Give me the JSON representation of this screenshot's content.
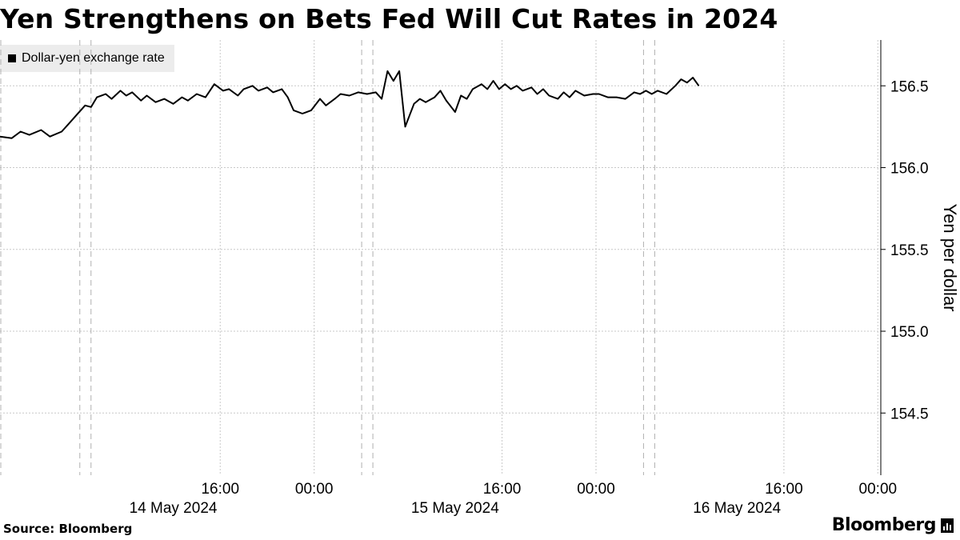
{
  "header": {
    "title": "Yen Strengthens on Bets Fed Will Cut Rates in 2024"
  },
  "footer": {
    "source": "Source: Bloomberg",
    "brand": "Bloomberg"
  },
  "colors": {
    "line": "#000000",
    "grid": "#c8c8c8",
    "legend_bg": "#ececec"
  },
  "chart_data": {
    "type": "line",
    "title": "Yen Strengthens on Bets Fed Will Cut Rates in 2024",
    "ylabel": "Yen per dollar",
    "y_axis_side": "right",
    "ylim": [
      154.12,
      156.78
    ],
    "yticks": [
      154.5,
      155.0,
      155.5,
      156.0,
      156.5
    ],
    "ytick_labels": [
      "154.5",
      "155.0",
      "155.5",
      "156.0",
      "156.5"
    ],
    "xlim": [
      "2024-05-13 21:15",
      "2024-05-17 00:15"
    ],
    "xticks": [
      {
        "time": "2024-05-14 16:00",
        "label": "16:00"
      },
      {
        "time": "2024-05-15 00:00",
        "label": "00:00"
      },
      {
        "time": "2024-05-15 16:00",
        "label": "16:00"
      },
      {
        "time": "2024-05-16 00:00",
        "label": "00:00"
      },
      {
        "time": "2024-05-16 16:00",
        "label": "16:00"
      },
      {
        "time": "2024-05-17 00:00",
        "label": "00:00"
      }
    ],
    "date_labels": [
      {
        "time": "2024-05-14 12:00",
        "label": "14 May 2024"
      },
      {
        "time": "2024-05-15 12:00",
        "label": "15 May 2024"
      },
      {
        "time": "2024-05-16 12:00",
        "label": "16 May 2024"
      }
    ],
    "session_markers": [
      "2024-05-14 05:00",
      "2024-05-15 05:00",
      "2024-05-16 05:00"
    ],
    "grid": true,
    "legend_position": "top-left",
    "series": [
      {
        "name": "Dollar-yen exchange rate",
        "color": "#000000",
        "points": [
          [
            "2024-05-13 21:15",
            156.19
          ],
          [
            "2024-05-13 22:15",
            156.18
          ],
          [
            "2024-05-13 23:00",
            156.22
          ],
          [
            "2024-05-13 23:45",
            156.2
          ],
          [
            "2024-05-14 00:45",
            156.23
          ],
          [
            "2024-05-14 01:30",
            156.19
          ],
          [
            "2024-05-14 02:30",
            156.22
          ],
          [
            "2024-05-14 03:15",
            156.28
          ],
          [
            "2024-05-14 03:45",
            156.32
          ],
          [
            "2024-05-14 04:30",
            156.38
          ],
          [
            "2024-05-14 05:00",
            156.37
          ],
          [
            "2024-05-14 05:30",
            156.43
          ],
          [
            "2024-05-14 06:15",
            156.45
          ],
          [
            "2024-05-14 06:45",
            156.42
          ],
          [
            "2024-05-14 07:30",
            156.47
          ],
          [
            "2024-05-14 08:00",
            156.44
          ],
          [
            "2024-05-14 08:30",
            156.46
          ],
          [
            "2024-05-14 09:15",
            156.41
          ],
          [
            "2024-05-14 09:45",
            156.44
          ],
          [
            "2024-05-14 10:30",
            156.4
          ],
          [
            "2024-05-14 11:15",
            156.42
          ],
          [
            "2024-05-14 12:00",
            156.39
          ],
          [
            "2024-05-14 12:45",
            156.43
          ],
          [
            "2024-05-14 13:15",
            156.41
          ],
          [
            "2024-05-14 14:00",
            156.45
          ],
          [
            "2024-05-14 14:45",
            156.43
          ],
          [
            "2024-05-14 15:30",
            156.51
          ],
          [
            "2024-05-14 16:15",
            156.47
          ],
          [
            "2024-05-14 16:45",
            156.48
          ],
          [
            "2024-05-14 17:30",
            156.44
          ],
          [
            "2024-05-14 18:00",
            156.48
          ],
          [
            "2024-05-14 18:45",
            156.5
          ],
          [
            "2024-05-14 19:15",
            156.47
          ],
          [
            "2024-05-14 20:00",
            156.49
          ],
          [
            "2024-05-14 20:30",
            156.46
          ],
          [
            "2024-05-14 21:15",
            156.48
          ],
          [
            "2024-05-14 21:45",
            156.43
          ],
          [
            "2024-05-14 22:15",
            156.35
          ],
          [
            "2024-05-14 23:00",
            156.33
          ],
          [
            "2024-05-14 23:45",
            156.35
          ],
          [
            "2024-05-15 00:30",
            156.42
          ],
          [
            "2024-05-15 01:00",
            156.38
          ],
          [
            "2024-05-15 01:45",
            156.42
          ],
          [
            "2024-05-15 02:15",
            156.45
          ],
          [
            "2024-05-15 03:00",
            156.44
          ],
          [
            "2024-05-15 03:45",
            156.46
          ],
          [
            "2024-05-15 04:30",
            156.45
          ],
          [
            "2024-05-15 05:15",
            156.46
          ],
          [
            "2024-05-15 05:45",
            156.42
          ],
          [
            "2024-05-15 06:15",
            156.59
          ],
          [
            "2024-05-15 06:45",
            156.53
          ],
          [
            "2024-05-15 07:15",
            156.59
          ],
          [
            "2024-05-15 07:45",
            156.25
          ],
          [
            "2024-05-15 08:30",
            156.39
          ],
          [
            "2024-05-15 09:00",
            156.42
          ],
          [
            "2024-05-15 09:30",
            156.4
          ],
          [
            "2024-05-15 10:15",
            156.43
          ],
          [
            "2024-05-15 10:45",
            156.47
          ],
          [
            "2024-05-15 11:15",
            156.41
          ],
          [
            "2024-05-15 12:00",
            156.34
          ],
          [
            "2024-05-15 12:30",
            156.44
          ],
          [
            "2024-05-15 13:00",
            156.42
          ],
          [
            "2024-05-15 13:30",
            156.48
          ],
          [
            "2024-05-15 14:15",
            156.51
          ],
          [
            "2024-05-15 14:45",
            156.48
          ],
          [
            "2024-05-15 15:15",
            156.53
          ],
          [
            "2024-05-15 15:45",
            156.48
          ],
          [
            "2024-05-15 16:15",
            156.51
          ],
          [
            "2024-05-15 16:45",
            156.48
          ],
          [
            "2024-05-15 17:15",
            156.5
          ],
          [
            "2024-05-15 17:45",
            156.47
          ],
          [
            "2024-05-15 18:30",
            156.49
          ],
          [
            "2024-05-15 19:00",
            156.45
          ],
          [
            "2024-05-15 19:30",
            156.48
          ],
          [
            "2024-05-15 20:00",
            156.44
          ],
          [
            "2024-05-15 20:45",
            156.42
          ],
          [
            "2024-05-15 21:15",
            156.46
          ],
          [
            "2024-05-15 21:45",
            156.43
          ],
          [
            "2024-05-15 22:15",
            156.47
          ],
          [
            "2024-05-15 23:00",
            156.44
          ],
          [
            "2024-05-15 23:45",
            156.45
          ],
          [
            "2024-05-16 00:15",
            156.45
          ],
          [
            "2024-05-16 01:00",
            156.43
          ],
          [
            "2024-05-16 01:45",
            156.43
          ],
          [
            "2024-05-16 02:30",
            156.42
          ],
          [
            "2024-05-16 03:15",
            156.46
          ],
          [
            "2024-05-16 03:45",
            156.45
          ],
          [
            "2024-05-16 04:15",
            156.47
          ],
          [
            "2024-05-16 04:45",
            156.45
          ],
          [
            "2024-05-16 05:15",
            156.47
          ],
          [
            "2024-05-16 06:00",
            156.45
          ],
          [
            "2024-05-16 06:45",
            156.5
          ],
          [
            "2024-05-16 07:15",
            156.54
          ],
          [
            "2024-05-16 07:45",
            156.52
          ],
          [
            "2024-05-16 08:15",
            156.55
          ],
          [
            "2024-05-16 08:45",
            156.5
          ]
        ]
      }
    ]
  }
}
